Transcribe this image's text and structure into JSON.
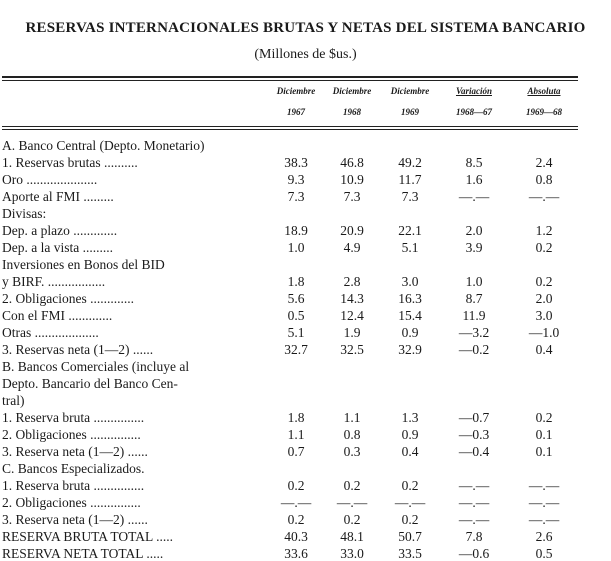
{
  "title": "RESERVAS INTERNACIONALES BRUTAS Y NETAS DEL SISTEMA BANCARIO",
  "subtitle": "(Millones de $us.)",
  "header": {
    "top": [
      "Diciembre",
      "Diciembre",
      "Diciembre",
      "Variación",
      "Absoluta"
    ],
    "bottom": [
      "1967",
      "1968",
      "1969",
      "1968—67",
      "1969—68"
    ]
  },
  "rows": [
    {
      "label": "A. Banco Central (Depto. Monetario)",
      "ind": 0,
      "vals": [
        "",
        "",
        "",
        "",
        ""
      ]
    },
    {
      "label": "1. Reservas brutas ..........",
      "ind": 1,
      "vals": [
        "38.3",
        "46.8",
        "49.2",
        "8.5",
        "2.4"
      ]
    },
    {
      "label": "Oro .....................",
      "ind": 2,
      "vals": [
        "9.3",
        "10.9",
        "11.7",
        "1.6",
        "0.8"
      ]
    },
    {
      "label": "Aporte al FMI .........",
      "ind": 3,
      "vals": [
        "7.3",
        "7.3",
        "7.3",
        "—.—",
        "—.—"
      ]
    },
    {
      "label": "Divisas:",
      "ind": 4,
      "vals": [
        "",
        "",
        "",
        "",
        ""
      ]
    },
    {
      "label": "Dep. a plazo .............",
      "ind": 2,
      "vals": [
        "18.9",
        "20.9",
        "22.1",
        "2.0",
        "1.2"
      ]
    },
    {
      "label": "Dep. a la vista .........",
      "ind": 2,
      "vals": [
        "1.0",
        "4.9",
        "5.1",
        "3.9",
        "0.2"
      ]
    },
    {
      "label": "Inversiones en Bonos del BID",
      "ind": 2,
      "vals": [
        "",
        "",
        "",
        "",
        ""
      ]
    },
    {
      "label": "y BIRF. .................",
      "ind": 5,
      "vals": [
        "1.8",
        "2.8",
        "3.0",
        "1.0",
        "0.2"
      ]
    },
    {
      "label": "2. Obligaciones .............",
      "ind": 1,
      "vals": [
        "5.6",
        "14.3",
        "16.3",
        "8.7",
        "2.0"
      ]
    },
    {
      "label": "Con el FMI .............",
      "ind": 2,
      "vals": [
        "0.5",
        "12.4",
        "15.4",
        "11.9",
        "3.0"
      ]
    },
    {
      "label": "Otras ...................",
      "ind": 3,
      "vals": [
        "5.1",
        "1.9",
        "0.9",
        "—3.2",
        "—1.0"
      ]
    },
    {
      "label": "3. Reservas neta (1—2) ......",
      "ind": 1,
      "vals": [
        "32.7",
        "32.5",
        "32.9",
        "—0.2",
        "0.4"
      ]
    },
    {
      "label": "B. Bancos Comerciales (incluye al",
      "ind": 0,
      "vals": [
        "",
        "",
        "",
        "",
        ""
      ]
    },
    {
      "label": "Depto. Bancario del Banco Cen-",
      "ind": 1,
      "vals": [
        "",
        "",
        "",
        "",
        ""
      ]
    },
    {
      "label": "tral)",
      "ind": 1,
      "vals": [
        "",
        "",
        "",
        "",
        ""
      ]
    },
    {
      "label": "1. Reserva bruta ...............",
      "ind": 1,
      "vals": [
        "1.8",
        "1.1",
        "1.3",
        "—0.7",
        "0.2"
      ]
    },
    {
      "label": "2. Obligaciones ...............",
      "ind": 1,
      "vals": [
        "1.1",
        "0.8",
        "0.9",
        "—0.3",
        "0.1"
      ]
    },
    {
      "label": "3. Reserva neta (1—2) ......",
      "ind": 1,
      "vals": [
        "0.7",
        "0.3",
        "0.4",
        "—0.4",
        "0.1"
      ]
    },
    {
      "label": "C. Bancos Especializados.",
      "ind": 0,
      "vals": [
        "",
        "",
        "",
        "",
        ""
      ]
    },
    {
      "label": "1. Reserva bruta ...............",
      "ind": 1,
      "vals": [
        "0.2",
        "0.2",
        "0.2",
        "—.—",
        "—.—"
      ]
    },
    {
      "label": "2. Obligaciones ...............",
      "ind": 1,
      "vals": [
        "—.—",
        "—.—",
        "—.—",
        "—.—",
        "—.—"
      ]
    },
    {
      "label": "3. Reserva neta (1—2) ......",
      "ind": 1,
      "vals": [
        "0.2",
        "0.2",
        "0.2",
        "—.—",
        "—.—"
      ]
    },
    {
      "label": "RESERVA BRUTA TOTAL .....",
      "ind": 0,
      "vals": [
        "40.3",
        "48.1",
        "50.7",
        "7.8",
        "2.6"
      ]
    },
    {
      "label": "RESERVA NETA TOTAL .....",
      "ind": 0,
      "vals": [
        "33.6",
        "33.0",
        "33.5",
        "—0.6",
        "0.5"
      ]
    }
  ]
}
